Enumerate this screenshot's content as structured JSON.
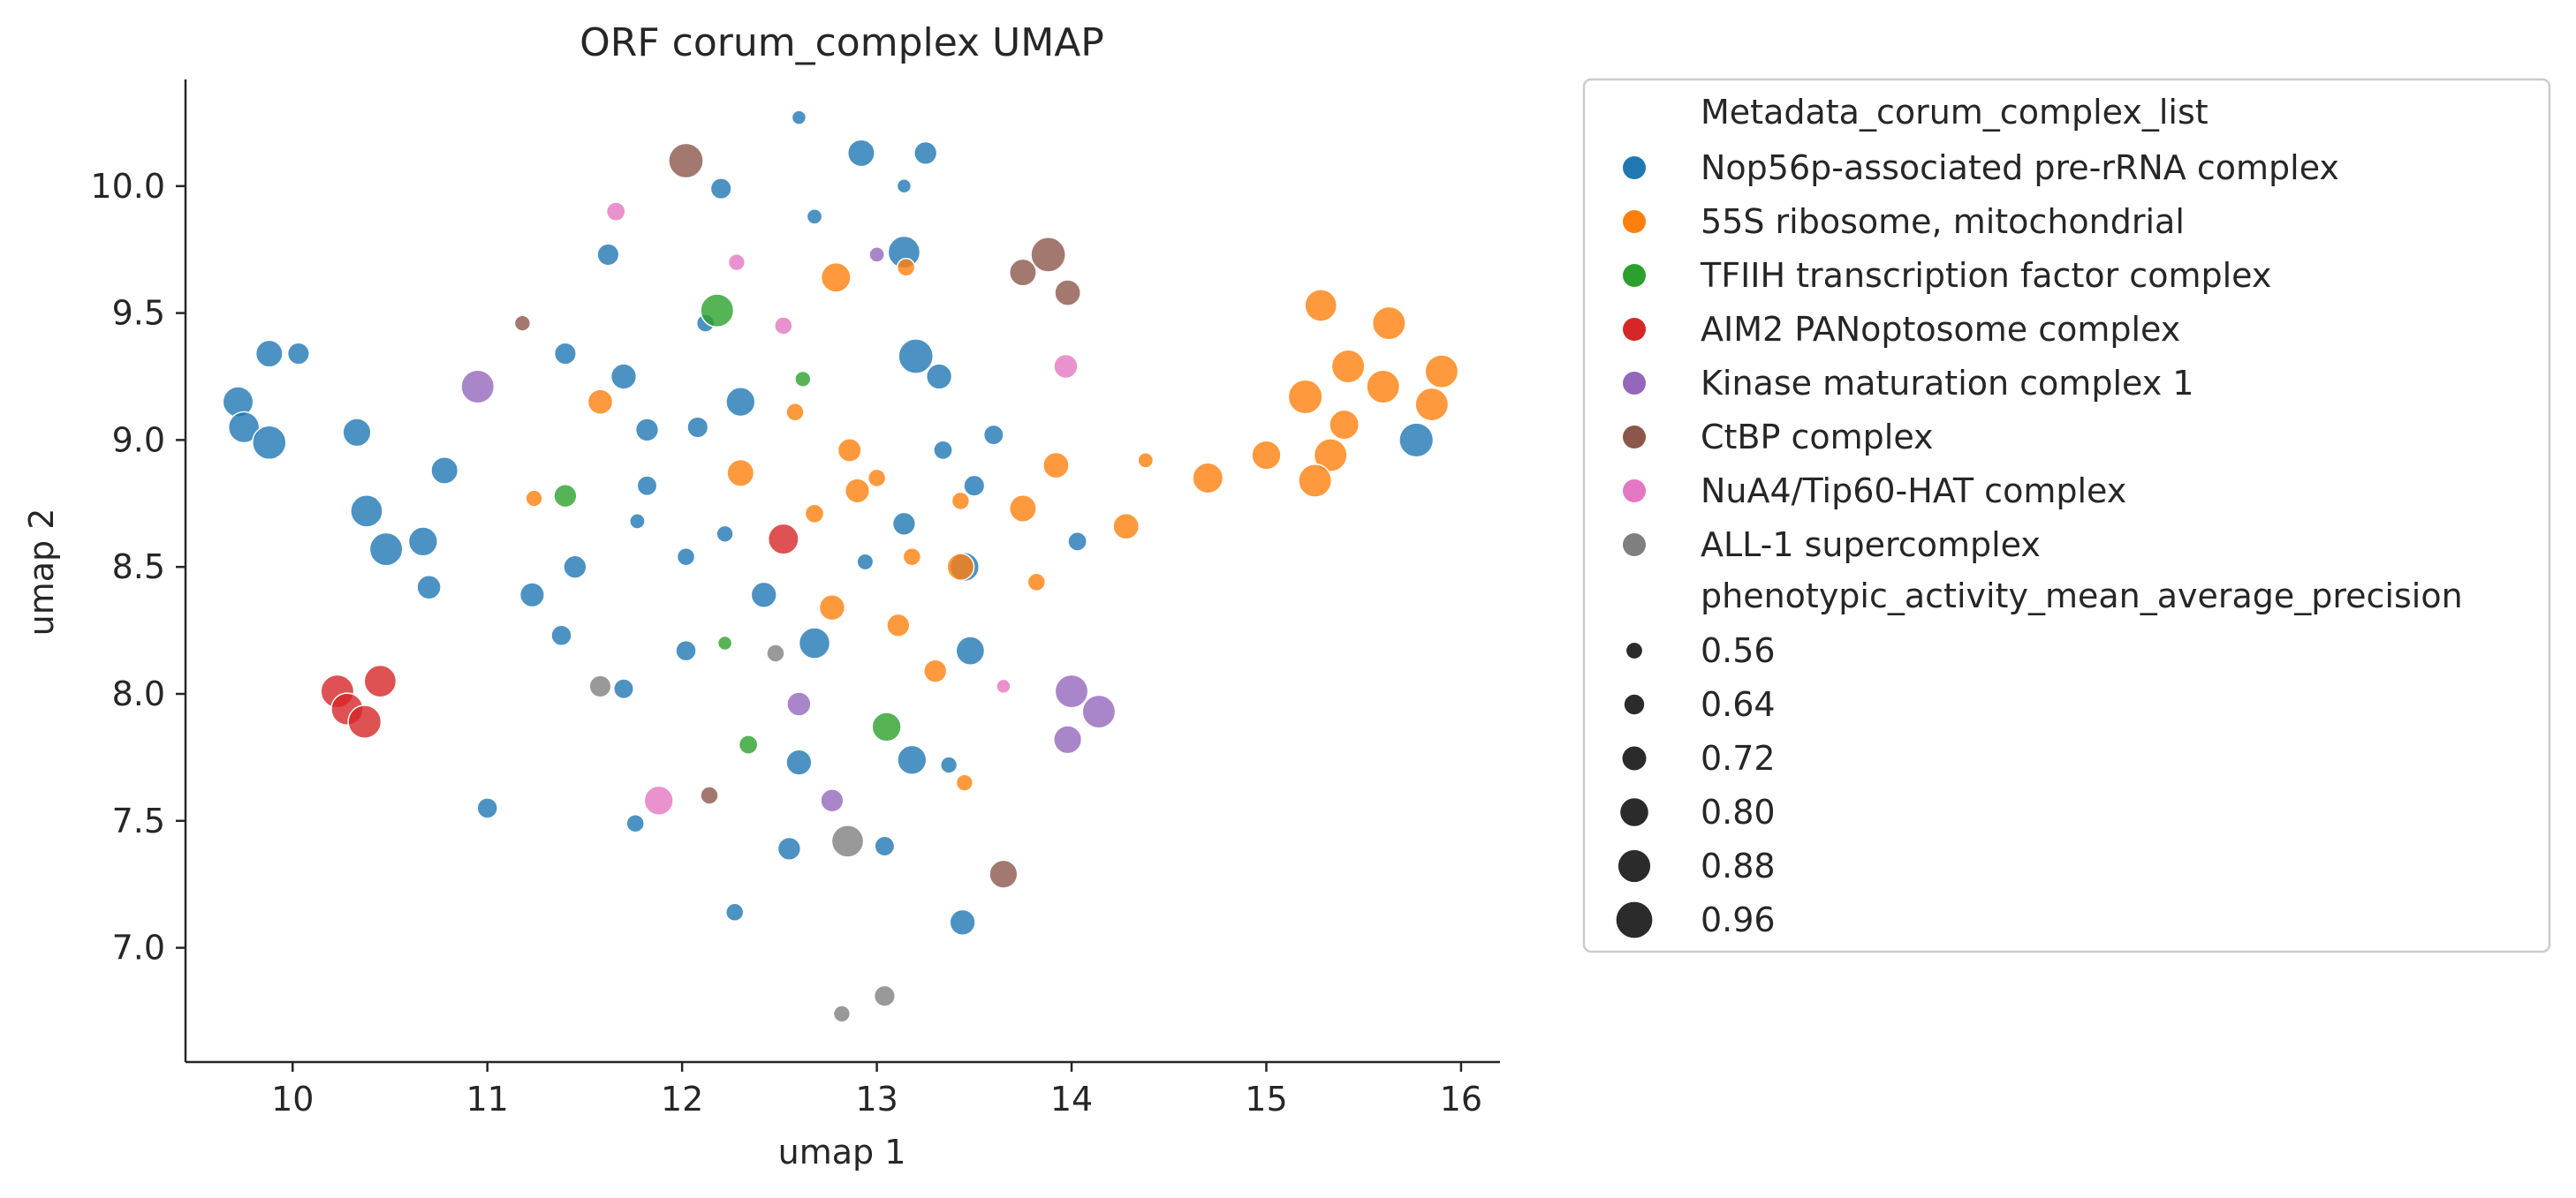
{
  "chart_data": {
    "type": "scatter",
    "title": "ORF corum_complex UMAP",
    "xlabel": "umap 1",
    "ylabel": "umap 2",
    "xlim": [
      9.45,
      16.2
    ],
    "ylim": [
      6.55,
      10.42
    ],
    "xticks": [
      10,
      11,
      12,
      13,
      14,
      15,
      16
    ],
    "yticks": [
      7.0,
      7.5,
      8.0,
      8.5,
      9.0,
      9.5,
      10.0
    ],
    "xtick_labels": [
      "10",
      "11",
      "12",
      "13",
      "14",
      "15",
      "16"
    ],
    "ytick_labels": [
      "7.0",
      "7.5",
      "8.0",
      "8.5",
      "9.0",
      "9.5",
      "10.0"
    ],
    "grid": false,
    "legend": {
      "placement": "outside-right",
      "hue_title": "Metadata_corum_complex_list",
      "size_title": "phenotypic_activity_mean_average_precision",
      "sizes": [
        0.56,
        0.64,
        0.72,
        0.8,
        0.88,
        0.96
      ],
      "size_labels": [
        "0.56",
        "0.64",
        "0.72",
        "0.80",
        "0.88",
        "0.96"
      ],
      "size_color": "#2b2b2b"
    },
    "size_range": [
      0.53,
      0.98
    ],
    "series": [
      {
        "name": "Nop56p-associated pre-rRNA complex",
        "color": "#1f77b4",
        "points": [
          [
            12.6,
            10.27,
            0.53
          ],
          [
            12.92,
            10.13,
            0.78
          ],
          [
            13.25,
            10.13,
            0.7
          ],
          [
            12.2,
            9.99,
            0.66
          ],
          [
            13.14,
            10.0,
            0.53
          ],
          [
            12.68,
            9.88,
            0.55
          ],
          [
            11.62,
            9.73,
            0.68
          ],
          [
            13.14,
            9.74,
            0.88
          ],
          [
            12.12,
            9.46,
            0.6
          ],
          [
            9.88,
            9.34,
            0.78
          ],
          [
            10.03,
            9.34,
            0.68
          ],
          [
            11.4,
            9.34,
            0.68
          ],
          [
            13.2,
            9.33,
            0.93
          ],
          [
            13.32,
            9.25,
            0.75
          ],
          [
            11.7,
            9.25,
            0.75
          ],
          [
            12.3,
            9.15,
            0.82
          ],
          [
            9.72,
            9.15,
            0.85
          ],
          [
            9.75,
            9.05,
            0.86
          ],
          [
            9.88,
            8.99,
            0.91
          ],
          [
            10.33,
            9.03,
            0.8
          ],
          [
            11.82,
            9.04,
            0.7
          ],
          [
            12.08,
            9.05,
            0.66
          ],
          [
            13.34,
            8.96,
            0.62
          ],
          [
            13.6,
            9.02,
            0.64
          ],
          [
            10.78,
            8.88,
            0.78
          ],
          [
            11.82,
            8.82,
            0.64
          ],
          [
            13.5,
            8.82,
            0.66
          ],
          [
            10.38,
            8.72,
            0.88
          ],
          [
            11.77,
            8.68,
            0.55
          ],
          [
            13.14,
            8.67,
            0.7
          ],
          [
            10.48,
            8.57,
            0.9
          ],
          [
            10.67,
            8.6,
            0.82
          ],
          [
            12.22,
            8.63,
            0.58
          ],
          [
            14.03,
            8.6,
            0.62
          ],
          [
            12.02,
            8.54,
            0.6
          ],
          [
            12.94,
            8.52,
            0.57
          ],
          [
            13.45,
            8.5,
            0.82
          ],
          [
            11.45,
            8.5,
            0.7
          ],
          [
            10.7,
            8.42,
            0.72
          ],
          [
            11.23,
            8.39,
            0.73
          ],
          [
            12.42,
            8.39,
            0.75
          ],
          [
            11.38,
            8.23,
            0.65
          ],
          [
            12.68,
            8.2,
            0.86
          ],
          [
            13.48,
            8.17,
            0.81
          ],
          [
            12.02,
            8.17,
            0.65
          ],
          [
            11.7,
            8.02,
            0.64
          ],
          [
            12.6,
            7.73,
            0.75
          ],
          [
            13.18,
            7.74,
            0.82
          ],
          [
            13.37,
            7.72,
            0.58
          ],
          [
            11.0,
            7.55,
            0.65
          ],
          [
            11.76,
            7.49,
            0.6
          ],
          [
            12.55,
            7.39,
            0.7
          ],
          [
            13.04,
            7.4,
            0.64
          ],
          [
            12.27,
            7.14,
            0.6
          ],
          [
            13.44,
            7.1,
            0.75
          ],
          [
            15.77,
            9.0,
            0.92
          ]
        ]
      },
      {
        "name": "55S ribosome, mitochondrial",
        "color": "#ff7f0e",
        "points": [
          [
            12.79,
            9.64,
            0.83
          ],
          [
            13.15,
            9.68,
            0.6
          ],
          [
            11.58,
            9.15,
            0.74
          ],
          [
            12.58,
            9.11,
            0.6
          ],
          [
            12.86,
            8.96,
            0.71
          ],
          [
            13.0,
            8.85,
            0.6
          ],
          [
            12.3,
            8.87,
            0.78
          ],
          [
            12.9,
            8.8,
            0.73
          ],
          [
            13.43,
            8.76,
            0.6
          ],
          [
            13.75,
            8.73,
            0.78
          ],
          [
            13.92,
            8.9,
            0.76
          ],
          [
            14.38,
            8.92,
            0.55
          ],
          [
            11.24,
            8.77,
            0.58
          ],
          [
            12.68,
            8.71,
            0.62
          ],
          [
            13.18,
            8.54,
            0.6
          ],
          [
            13.43,
            8.5,
            0.78
          ],
          [
            13.82,
            8.44,
            0.6
          ],
          [
            12.77,
            8.34,
            0.75
          ],
          [
            13.11,
            8.27,
            0.7
          ],
          [
            13.3,
            8.09,
            0.7
          ],
          [
            13.45,
            7.65,
            0.58
          ],
          [
            14.28,
            8.66,
            0.76
          ],
          [
            14.7,
            8.85,
            0.85
          ],
          [
            15.0,
            8.94,
            0.82
          ],
          [
            15.28,
            9.53,
            0.88
          ],
          [
            15.63,
            9.46,
            0.9
          ],
          [
            15.42,
            9.29,
            0.9
          ],
          [
            15.2,
            9.17,
            0.92
          ],
          [
            15.6,
            9.21,
            0.9
          ],
          [
            15.9,
            9.27,
            0.9
          ],
          [
            15.85,
            9.14,
            0.9
          ],
          [
            15.4,
            9.06,
            0.83
          ],
          [
            15.33,
            8.94,
            0.9
          ],
          [
            15.25,
            8.84,
            0.9
          ]
        ]
      },
      {
        "name": "TFIIH transcription factor complex",
        "color": "#2ca02c",
        "points": [
          [
            12.18,
            9.51,
            0.9
          ],
          [
            12.62,
            9.24,
            0.56
          ],
          [
            11.4,
            8.78,
            0.7
          ],
          [
            12.22,
            8.2,
            0.53
          ],
          [
            12.34,
            7.8,
            0.62
          ],
          [
            13.05,
            7.87,
            0.82
          ]
        ]
      },
      {
        "name": "AIM2 PANoptosome complex",
        "color": "#d62728",
        "points": [
          [
            12.52,
            8.61,
            0.85
          ],
          [
            10.23,
            8.01,
            0.9
          ],
          [
            10.28,
            7.94,
            0.88
          ],
          [
            10.37,
            7.89,
            0.9
          ],
          [
            10.45,
            8.05,
            0.88
          ]
        ]
      },
      {
        "name": "Kinase maturation complex 1",
        "color": "#9467bd",
        "points": [
          [
            13.0,
            9.73,
            0.55
          ],
          [
            10.95,
            9.21,
            0.9
          ],
          [
            12.6,
            7.96,
            0.72
          ],
          [
            12.77,
            7.58,
            0.7
          ],
          [
            14.0,
            8.01,
            0.9
          ],
          [
            14.14,
            7.93,
            0.9
          ],
          [
            13.98,
            7.82,
            0.8
          ]
        ]
      },
      {
        "name": "CtBP complex",
        "color": "#8c564b",
        "points": [
          [
            12.02,
            10.1,
            0.93
          ],
          [
            13.88,
            9.73,
            0.93
          ],
          [
            13.75,
            9.66,
            0.78
          ],
          [
            13.98,
            9.58,
            0.76
          ],
          [
            11.18,
            9.46,
            0.56
          ],
          [
            12.14,
            7.6,
            0.6
          ],
          [
            13.65,
            7.29,
            0.8
          ]
        ]
      },
      {
        "name": "NuA4/Tip60-HAT complex",
        "color": "#e377c2",
        "points": [
          [
            11.66,
            9.9,
            0.62
          ],
          [
            12.28,
            9.7,
            0.58
          ],
          [
            12.52,
            9.45,
            0.6
          ],
          [
            13.97,
            9.29,
            0.72
          ],
          [
            13.65,
            8.03,
            0.53
          ],
          [
            11.88,
            7.58,
            0.82
          ]
        ]
      },
      {
        "name": "ALL-1 supercomplex",
        "color": "#7f7f7f",
        "points": [
          [
            11.58,
            8.03,
            0.68
          ],
          [
            12.48,
            8.16,
            0.6
          ],
          [
            12.85,
            7.42,
            0.88
          ],
          [
            13.04,
            6.81,
            0.66
          ],
          [
            12.82,
            6.74,
            0.58
          ]
        ]
      }
    ]
  }
}
